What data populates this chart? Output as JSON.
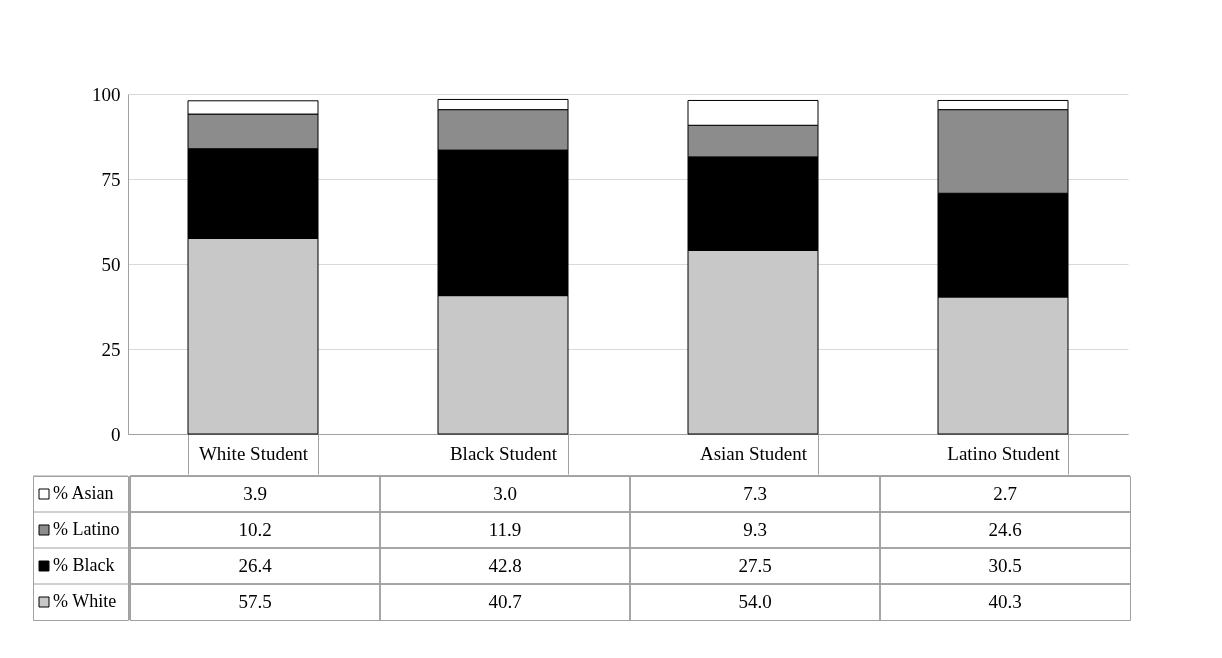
{
  "chart_data": {
    "type": "bar",
    "stacked": true,
    "categories": [
      "White Student",
      "Black Student",
      "Asian Student",
      "Latino Student"
    ],
    "series": [
      {
        "name": "% White",
        "color": "#c8c8c8",
        "values": [
          57.5,
          40.7,
          54.0,
          40.3
        ],
        "value_labels": [
          "57.5",
          "40.7",
          "54.0",
          "40.3"
        ]
      },
      {
        "name": "% Black",
        "color": "#000000",
        "values": [
          26.4,
          42.8,
          27.5,
          30.5
        ],
        "value_labels": [
          "26.4",
          "42.8",
          "27.5",
          "30.5"
        ]
      },
      {
        "name": "% Latino",
        "color": "#8c8c8c",
        "values": [
          10.2,
          11.9,
          9.3,
          24.6
        ],
        "value_labels": [
          "10.2",
          "11.9",
          "9.3",
          "24.6"
        ]
      },
      {
        "name": "% Asian",
        "color": "#ffffff",
        "values": [
          3.9,
          3.0,
          7.3,
          2.7
        ],
        "value_labels": [
          "3.9",
          "3.0",
          "7.3",
          "2.7"
        ]
      }
    ],
    "legend": "left",
    "ylim": [
      0,
      100
    ],
    "yticks": [
      0,
      25,
      50,
      75,
      100
    ],
    "grid": "y"
  }
}
